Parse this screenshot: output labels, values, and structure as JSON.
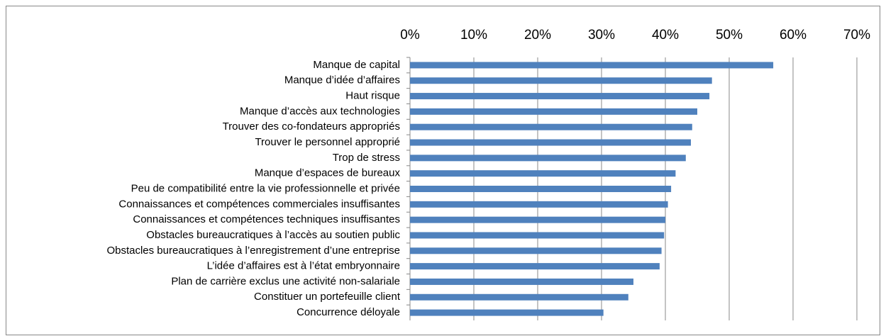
{
  "chart_data": {
    "type": "bar",
    "orientation": "horizontal",
    "color": "#4f81bd",
    "grid": true,
    "categories": [
      "Manque de capital",
      "Manque d’idée d’affaires",
      "Haut risque",
      "Manque d’accès aux technologies",
      "Trouver des co-fondateurs appropriés",
      "Trouver le personnel approprié",
      "Trop de stress",
      "Manque d’espaces de bureaux",
      "Peu de compatibilité entre la vie professionnelle et privée",
      "Connaissances et compétences commerciales insuffisantes",
      "Connaissances et compétences techniques insuffisantes",
      "Obstacles bureaucratiques à l’accès au soutien public",
      "Obstacles bureaucratiques à l’enregistrement d’une entreprise",
      "L’idée d’affaires est à l’état embryonnaire",
      "Plan de carrière exclus une activité non-salariale",
      "Constituer un portefeuille client",
      "Concurrence déloyale"
    ],
    "values": [
      56.9,
      47.3,
      46.9,
      45.0,
      44.2,
      44.0,
      43.2,
      41.6,
      40.9,
      40.4,
      40.0,
      39.8,
      39.4,
      39.1,
      35.0,
      34.2,
      30.3
    ],
    "xlim": [
      0,
      70
    ],
    "xticks": [
      {
        "value": 0,
        "label": "0%"
      },
      {
        "value": 10,
        "label": "10%"
      },
      {
        "value": 20,
        "label": "20%"
      },
      {
        "value": 30,
        "label": "30%"
      },
      {
        "value": 40,
        "label": "40%"
      },
      {
        "value": 50,
        "label": "50%"
      },
      {
        "value": 60,
        "label": "60%"
      },
      {
        "value": 70,
        "label": "70%"
      }
    ]
  }
}
